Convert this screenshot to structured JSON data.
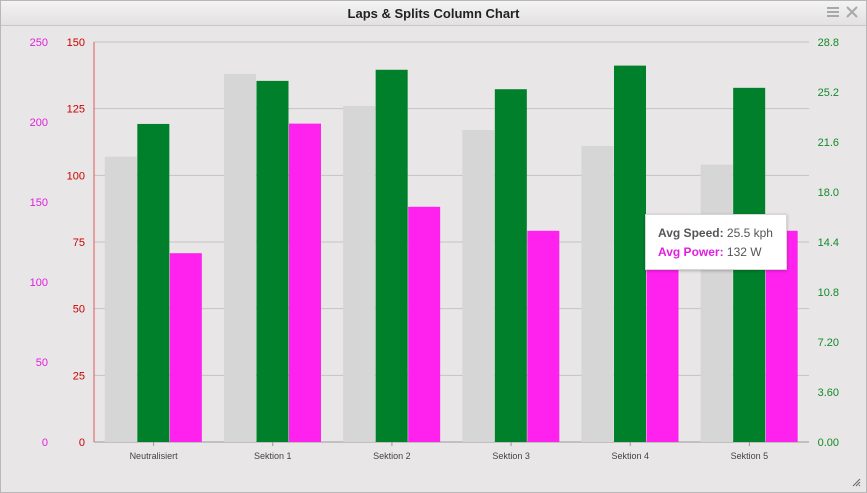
{
  "window": {
    "title": "Laps & Splits Column Chart"
  },
  "icons": {
    "menu": "hamburger-menu-icon",
    "close": "close-icon",
    "resize": "resize-grip-icon"
  },
  "colors": {
    "grey": "#d6d6d6",
    "green": "#00802a",
    "magenta": "#ff22ee",
    "red": "#cc0000",
    "magenta_axis": "#e020e0",
    "green_axis": "#118a2a"
  },
  "chart_data": {
    "type": "bar",
    "categories": [
      "Neutralisiert",
      "Sektion 1",
      "Sektion 2",
      "Sektion 3",
      "Sektion 4",
      "Sektion 5"
    ],
    "series": [
      {
        "axis": "red",
        "color": "#d6d6d6",
        "values": [
          107,
          138,
          126,
          117,
          111,
          104
        ]
      },
      {
        "axis": "green",
        "color": "#00802a",
        "values": [
          22.9,
          26.0,
          26.8,
          25.4,
          27.1,
          25.5
        ]
      },
      {
        "axis": "magenta",
        "color": "#ff22ee",
        "values": [
          118,
          199,
          147,
          132,
          132,
          132
        ]
      }
    ],
    "axes": {
      "red": {
        "ticks": [
          "150",
          "125",
          "100",
          "75",
          "50",
          "25",
          "0"
        ],
        "ylim": [
          0,
          150
        ]
      },
      "magenta": {
        "ticks": [
          "250",
          "200",
          "150",
          "100",
          "50",
          "0"
        ],
        "ylim": [
          0,
          250
        ]
      },
      "green": {
        "ticks": [
          "28.8",
          "25.2",
          "21.6",
          "18.0",
          "14.4",
          "10.8",
          "7.20",
          "3.60",
          "0.00"
        ],
        "ylim": [
          0,
          28.8
        ]
      }
    },
    "grid": true,
    "tooltip": {
      "speed_label": "Avg Speed:",
      "speed_value": "25.5 kph",
      "power_label": "Avg Power:",
      "power_value": "132 W"
    }
  }
}
